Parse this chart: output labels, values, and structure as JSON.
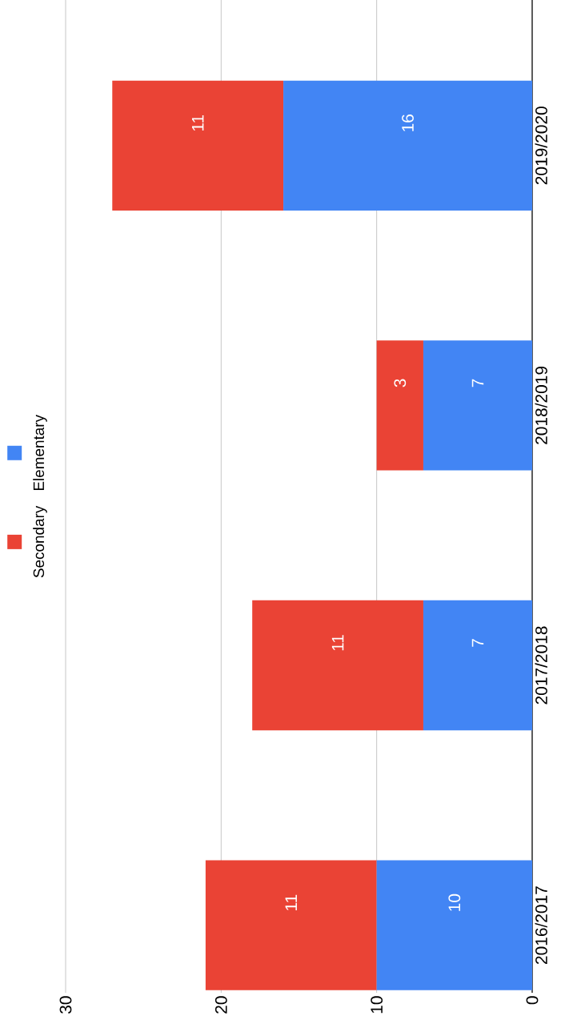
{
  "chart_data": {
    "type": "bar",
    "stacked": true,
    "orientation": "horizontal",
    "categories": [
      "2019/2020",
      "2018/2019",
      "2017/2018",
      "2016/2017"
    ],
    "series": [
      {
        "name": "Elementary",
        "color": "#4285f4",
        "values": [
          16,
          7,
          7,
          10
        ]
      },
      {
        "name": "Secondary",
        "color": "#ea4335",
        "values": [
          11,
          3,
          11,
          11
        ]
      }
    ],
    "xlim": [
      30,
      0
    ],
    "xticks": [
      0,
      10,
      20,
      30
    ],
    "grid": "x",
    "legend": "left",
    "data_labels": true
  }
}
